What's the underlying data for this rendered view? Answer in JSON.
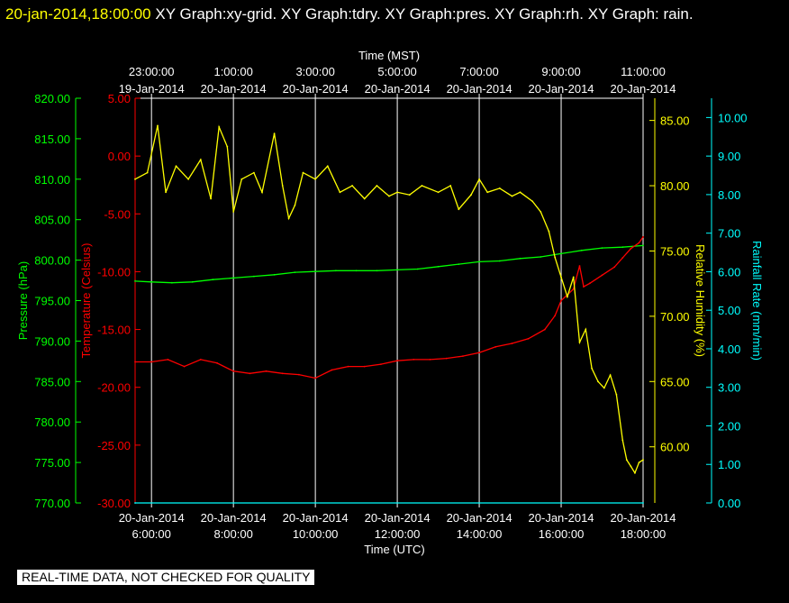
{
  "header": {
    "timestamp": "20-jan-2014,18:00:00",
    "titles": "XY Graph:xy-grid.  XY Graph:tdry.  XY Graph:pres.  XY Graph:rh.  XY Graph: rain."
  },
  "notice": "REAL-TIME DATA, NOT CHECKED FOR QUALITY",
  "colors": {
    "pressure": "#00ff00",
    "temperature": "#ff0000",
    "humidity": "#ffff00",
    "rain": "#00ffff",
    "grid": "#ffffff"
  },
  "chart_data": {
    "type": "line",
    "top_axis": {
      "label": "Time (MST)",
      "ticks": [
        {
          "time": "23:00:00",
          "date": "19-Jan-2014"
        },
        {
          "time": "1:00:00",
          "date": "20-Jan-2014"
        },
        {
          "time": "3:00:00",
          "date": "20-Jan-2014"
        },
        {
          "time": "5:00:00",
          "date": "20-Jan-2014"
        },
        {
          "time": "7:00:00",
          "date": "20-Jan-2014"
        },
        {
          "time": "9:00:00",
          "date": "20-Jan-2014"
        },
        {
          "time": "11:00:00",
          "date": "20-Jan-2014"
        }
      ]
    },
    "bottom_axis": {
      "label": "Time (UTC)",
      "ticks": [
        {
          "date": "20-Jan-2014",
          "time": "6:00:00"
        },
        {
          "date": "20-Jan-2014",
          "time": "8:00:00"
        },
        {
          "date": "20-Jan-2014",
          "time": "10:00:00"
        },
        {
          "date": "20-Jan-2014",
          "time": "12:00:00"
        },
        {
          "date": "20-Jan-2014",
          "time": "14:00:00"
        },
        {
          "date": "20-Jan-2014",
          "time": "16:00:00"
        },
        {
          "date": "20-Jan-2014",
          "time": "18:00:00"
        }
      ]
    },
    "x_range_utc_hours": [
      5.6,
      18.0
    ],
    "x_ticks_utc_hours": [
      6,
      8,
      10,
      12,
      14,
      16,
      18
    ],
    "pressure_axis": {
      "label": "Pressure (hPa)",
      "range": [
        770,
        820
      ],
      "ticks": [
        "770.00",
        "775.00",
        "780.00",
        "785.00",
        "790.00",
        "795.00",
        "800.00",
        "805.00",
        "810.00",
        "815.00",
        "820.00"
      ]
    },
    "temperature_axis": {
      "label": "Temperature (Celsius)",
      "range": [
        -30,
        5
      ],
      "ticks": [
        "-30.00",
        "-25.00",
        "-20.00",
        "-15.00",
        "-10.00",
        "-5.00",
        "0.00",
        "5.00"
      ]
    },
    "humidity_axis": {
      "label": "Relative Humidity (%)",
      "range": [
        55.7,
        86.7
      ],
      "ticks": [
        "60.00",
        "65.00",
        "70.00",
        "75.00",
        "80.00",
        "85.00"
      ]
    },
    "rain_axis": {
      "label": "Rainfall Rate (mm/min)",
      "range": [
        0,
        10.5
      ],
      "ticks": [
        "0.00",
        "1.00",
        "2.00",
        "3.00",
        "4.00",
        "5.00",
        "6.00",
        "7.00",
        "8.00",
        "9.00",
        "10.00"
      ]
    },
    "series": [
      {
        "name": "Pressure",
        "axis": "pressure",
        "x": [
          5.6,
          6.0,
          6.5,
          7.0,
          7.5,
          8.0,
          8.5,
          9.0,
          9.5,
          10.0,
          10.5,
          11.0,
          11.5,
          12.0,
          12.5,
          13.0,
          13.5,
          14.0,
          14.5,
          15.0,
          15.5,
          16.0,
          16.5,
          17.0,
          17.5,
          18.0
        ],
        "y": [
          797.4,
          797.3,
          797.2,
          797.3,
          797.6,
          797.8,
          798.0,
          798.2,
          798.5,
          798.6,
          798.7,
          798.7,
          798.7,
          798.8,
          798.9,
          799.2,
          799.5,
          799.8,
          799.9,
          800.2,
          800.4,
          800.8,
          801.2,
          801.5,
          801.6,
          801.8
        ]
      },
      {
        "name": "Temperature",
        "axis": "temperature",
        "x": [
          5.6,
          6.0,
          6.4,
          6.8,
          7.2,
          7.6,
          8.0,
          8.4,
          8.8,
          9.2,
          9.6,
          10.0,
          10.4,
          10.8,
          11.2,
          11.6,
          12.0,
          12.4,
          12.8,
          13.2,
          13.6,
          14.0,
          14.4,
          14.8,
          15.2,
          15.6,
          15.85,
          16.0,
          16.3,
          16.45,
          16.55,
          16.7,
          17.0,
          17.3,
          17.5,
          17.7,
          17.9,
          18.0
        ],
        "y": [
          -17.8,
          -17.8,
          -17.6,
          -18.2,
          -17.6,
          -17.9,
          -18.6,
          -18.8,
          -18.6,
          -18.8,
          -18.9,
          -19.2,
          -18.5,
          -18.2,
          -18.2,
          -18.0,
          -17.7,
          -17.6,
          -17.6,
          -17.5,
          -17.3,
          -17.0,
          -16.5,
          -16.2,
          -15.8,
          -15.0,
          -13.8,
          -12.5,
          -11.5,
          -9.5,
          -11.3,
          -11.0,
          -10.3,
          -9.6,
          -8.8,
          -8.0,
          -7.5,
          -7.0
        ]
      },
      {
        "name": "Relative Humidity",
        "axis": "humidity",
        "x": [
          5.6,
          5.9,
          6.15,
          6.35,
          6.6,
          6.9,
          7.2,
          7.45,
          7.65,
          7.85,
          8.0,
          8.2,
          8.5,
          8.7,
          9.0,
          9.2,
          9.35,
          9.5,
          9.7,
          10.0,
          10.3,
          10.6,
          10.9,
          11.2,
          11.5,
          11.8,
          12.0,
          12.3,
          12.6,
          13.0,
          13.3,
          13.5,
          13.8,
          14.0,
          14.2,
          14.5,
          14.8,
          15.0,
          15.3,
          15.5,
          15.7,
          15.85,
          16.0,
          16.15,
          16.3,
          16.45,
          16.6,
          16.75,
          16.9,
          17.05,
          17.2,
          17.35,
          17.5,
          17.6,
          17.7,
          17.8,
          17.9,
          18.0
        ],
        "y": [
          80.5,
          81.0,
          84.6,
          79.5,
          81.5,
          80.5,
          82.0,
          79.0,
          84.5,
          83.0,
          78.0,
          80.5,
          81.0,
          79.5,
          84.0,
          80.0,
          77.5,
          78.5,
          81.0,
          80.5,
          81.5,
          79.5,
          80.0,
          79.0,
          80.0,
          79.2,
          79.5,
          79.3,
          80.0,
          79.5,
          80.0,
          78.2,
          79.3,
          80.5,
          79.5,
          79.8,
          79.2,
          79.5,
          78.8,
          78.0,
          76.5,
          74.5,
          73.0,
          71.5,
          73.0,
          68.0,
          69.0,
          66.0,
          65.0,
          64.5,
          65.5,
          64.0,
          60.5,
          59.0,
          58.5,
          58.0,
          58.8,
          59.0
        ]
      },
      {
        "name": "Rainfall Rate",
        "axis": "rain",
        "x": [
          5.6,
          18.0
        ],
        "y": [
          0.0,
          0.0
        ]
      }
    ]
  }
}
